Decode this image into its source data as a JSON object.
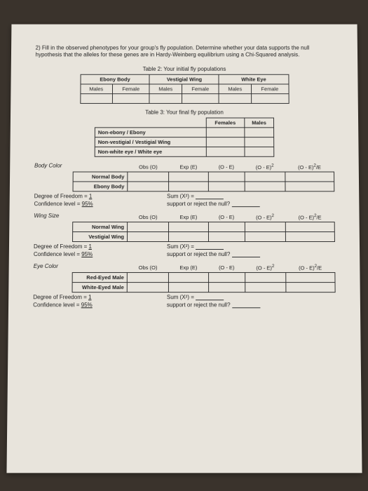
{
  "instruction": "2) Fill in the observed phenotypes for your group's fly population. Determine whether your data supports the null hypothesis that the alleles for these genes are in Hardy-Weinberg equilibrium using a Chi-Squared analysis.",
  "table2": {
    "title": "Table 2: Your initial fly populations",
    "headers": [
      "Ebony Body",
      "Vestigial Wing",
      "White Eye"
    ],
    "sub": [
      "Males",
      "Female",
      "Males",
      "Female",
      "Males",
      "Female"
    ]
  },
  "table3": {
    "title": "Table 3: Your final fly population",
    "cols": [
      "Females",
      "Males"
    ],
    "rows": [
      "Non-ebony / Ebony",
      "Non-vestigial / Vestigial Wing",
      "Non-white eye / White eye"
    ]
  },
  "chi": {
    "headers": [
      "Obs (O)",
      "Exp (E)",
      "(O - E)",
      "(O - E)²",
      "(O - E)²/E"
    ],
    "sections": [
      {
        "label": "Body Color",
        "rows": [
          "Normal Body",
          "Ebony Body"
        ]
      },
      {
        "label": "Wing Size",
        "rows": [
          "Normal Wing",
          "Vestigial Wing"
        ]
      },
      {
        "label": "Eye Color",
        "rows": [
          "Red-Eyed Male",
          "White-Eyed Male"
        ]
      }
    ],
    "dof": "Degree of Freedom = ",
    "dof_val": "1",
    "conf": "Confidence level = ",
    "conf_val": "95%",
    "sum": "Sum (X²) = ",
    "support": "support or reject the null?"
  }
}
